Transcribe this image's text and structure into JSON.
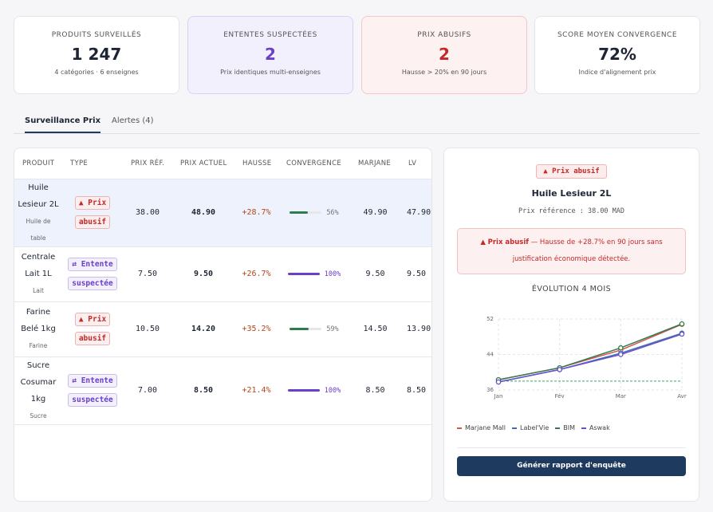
{
  "kpis": [
    {
      "label": "PRODUITS SURVEILLÉS",
      "value": "1 247",
      "note": "4 catégories · 6 enseignes"
    },
    {
      "label": "ENTENTES SUSPECTÉES",
      "value": "2",
      "note": "Prix identiques multi-enseignes"
    },
    {
      "label": "PRIX ABUSIFS",
      "value": "2",
      "note": "Hausse > 20% en 90 jours"
    },
    {
      "label": "SCORE MOYEN CONVERGENCE",
      "value": "72%",
      "note": "Indice d'alignement prix"
    }
  ],
  "tabs": [
    "Surveillance Prix",
    "Alertes (4)"
  ],
  "table": {
    "headers": [
      "PRODUIT",
      "TYPE",
      "PRIX RÉF.",
      "PRIX ACTUEL",
      "HAUSSE",
      "CONVERGENCE",
      "MARJANE",
      "LV"
    ],
    "rows": [
      {
        "product": "Huile Lesieur 2L",
        "category": "Huile de table",
        "type_icon": "▲",
        "type": "Prix abusif",
        "type_color": "#c62828",
        "prix_ref": "38.00",
        "prix_actuel": "48.90",
        "hausse": "+28.7%",
        "convergence": {
          "value": 56,
          "label": "56%"
        },
        "convergence_color": "#2e7d4f",
        "marjane": "49.90",
        "lv": "47.90"
      },
      {
        "product": "Centrale Lait 1L",
        "category": "Lait",
        "type_icon": "⇄",
        "type": "Entente suspectée",
        "type_color": "#6a3fc9",
        "prix_ref": "7.50",
        "prix_actuel": "9.50",
        "hausse": "+26.7%",
        "convergence": {
          "value": 100,
          "label": "100%"
        },
        "convergence_color": "#6a3fc9",
        "marjane": "9.50",
        "lv": "9.50"
      },
      {
        "product": "Farine Belé 1kg",
        "category": "Farine",
        "type_icon": "▲",
        "type": "Prix abusif",
        "type_color": "#c62828",
        "prix_ref": "10.50",
        "prix_actuel": "14.20",
        "hausse": "+35.2%",
        "convergence": {
          "value": 59,
          "label": "59%"
        },
        "convergence_color": "#2e7d4f",
        "marjane": "14.50",
        "lv": "13.90"
      },
      {
        "product": "Sucre Cosumar 1kg",
        "category": "Sucre",
        "type_icon": "⇄",
        "type": "Entente suspectée",
        "type_color": "#6a3fc9",
        "prix_ref": "7.00",
        "prix_actuel": "8.50",
        "hausse": "+21.4%",
        "convergence": {
          "value": 100,
          "label": "100%"
        },
        "convergence_color": "#6a3fc9",
        "marjane": "8.50",
        "lv": "8.50"
      }
    ]
  },
  "detail": {
    "badge_icon": "▲",
    "badge": "Prix abusif",
    "title": "Huile Lesieur 2L",
    "reference": "Prix référence : 38.00 MAD",
    "alert_icon": "▲",
    "alert_strong": "Prix abusif",
    "alert_text": "— Hausse de +28.7% en 90 jours sans justification économique détectée.",
    "chart_data": {
      "type": "line",
      "title": "ÉVOLUTION 4 MOIS",
      "categories": [
        "Jan",
        "Fév",
        "Mar",
        "Avr"
      ],
      "series": [
        {
          "name": "Marjane Mall",
          "color": "#d9534f",
          "values": [
            38.3,
            41,
            45,
            50.8
          ]
        },
        {
          "name": "Label'Vie",
          "color": "#3b6fb6",
          "values": [
            37.8,
            40.6,
            44.3,
            48.8
          ]
        },
        {
          "name": "BIM",
          "color": "#2e7d4f",
          "values": [
            38.3,
            41,
            45.5,
            50.9
          ]
        },
        {
          "name": "Aswak",
          "color": "#6a4fc9",
          "values": [
            37.8,
            40.6,
            44,
            48.6
          ]
        }
      ],
      "reference": 38,
      "reference_color": "#3aa76d",
      "ylim": [
        36,
        52
      ],
      "yticks": [
        36,
        44,
        52
      ],
      "grid": true
    },
    "button": "Générer rapport d'enquête"
  }
}
